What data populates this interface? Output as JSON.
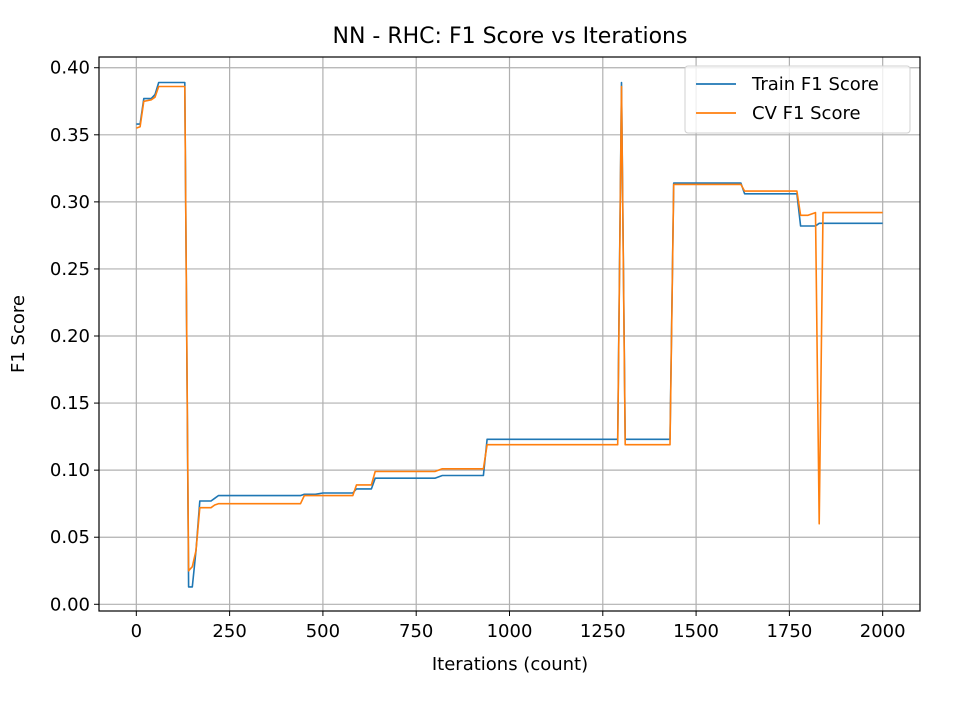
{
  "chart_data": {
    "type": "line",
    "title": "NN - RHC: F1 Score vs Iterations",
    "xlabel": "Iterations (count)",
    "ylabel": "F1 Score",
    "xlim": [
      -100,
      2100
    ],
    "ylim": [
      -0.005,
      0.408
    ],
    "xticks": [
      0,
      250,
      500,
      750,
      1000,
      1250,
      1500,
      1750,
      2000
    ],
    "xtick_labels": [
      "0",
      "250",
      "500",
      "750",
      "1000",
      "1250",
      "1500",
      "1750",
      "2000"
    ],
    "yticks": [
      0.0,
      0.05,
      0.1,
      0.15,
      0.2,
      0.25,
      0.3,
      0.35,
      0.4
    ],
    "ytick_labels": [
      "0.00",
      "0.05",
      "0.10",
      "0.15",
      "0.20",
      "0.25",
      "0.30",
      "0.35",
      "0.40"
    ],
    "grid": true,
    "legend_position": "top-right",
    "series": [
      {
        "name": "Train F1 Score",
        "color": "#1f77b4",
        "x": [
          0,
          10,
          20,
          40,
          50,
          60,
          80,
          100,
          130,
          140,
          150,
          160,
          170,
          180,
          200,
          210,
          220,
          250,
          300,
          350,
          400,
          440,
          450,
          480,
          500,
          540,
          580,
          590,
          620,
          630,
          640,
          700,
          800,
          820,
          900,
          930,
          940,
          1000,
          1100,
          1200,
          1290,
          1300,
          1310,
          1350,
          1400,
          1430,
          1440,
          1450,
          1500,
          1550,
          1600,
          1620,
          1630,
          1700,
          1750,
          1770,
          1780,
          1800,
          1820,
          1830,
          1840,
          1900,
          2000
        ],
        "y": [
          0.358,
          0.358,
          0.377,
          0.377,
          0.38,
          0.389,
          0.389,
          0.389,
          0.389,
          0.013,
          0.013,
          0.04,
          0.077,
          0.077,
          0.077,
          0.079,
          0.081,
          0.081,
          0.081,
          0.081,
          0.081,
          0.081,
          0.082,
          0.082,
          0.083,
          0.083,
          0.083,
          0.086,
          0.086,
          0.086,
          0.094,
          0.094,
          0.094,
          0.096,
          0.096,
          0.096,
          0.123,
          0.123,
          0.123,
          0.123,
          0.123,
          0.389,
          0.123,
          0.123,
          0.123,
          0.123,
          0.314,
          0.314,
          0.314,
          0.314,
          0.314,
          0.314,
          0.306,
          0.306,
          0.306,
          0.306,
          0.282,
          0.282,
          0.282,
          0.284,
          0.284,
          0.284,
          0.284
        ]
      },
      {
        "name": "CV F1 Score",
        "color": "#ff7f0e",
        "x": [
          0,
          10,
          20,
          40,
          50,
          60,
          80,
          100,
          130,
          140,
          150,
          160,
          170,
          180,
          200,
          210,
          220,
          250,
          300,
          350,
          400,
          440,
          450,
          480,
          500,
          540,
          580,
          590,
          620,
          630,
          640,
          700,
          800,
          820,
          900,
          930,
          940,
          1000,
          1100,
          1200,
          1290,
          1300,
          1310,
          1350,
          1400,
          1430,
          1440,
          1450,
          1500,
          1550,
          1600,
          1620,
          1630,
          1700,
          1750,
          1770,
          1780,
          1800,
          1820,
          1830,
          1840,
          1900,
          2000
        ],
        "y": [
          0.355,
          0.356,
          0.375,
          0.376,
          0.378,
          0.386,
          0.386,
          0.386,
          0.386,
          0.025,
          0.028,
          0.04,
          0.072,
          0.072,
          0.072,
          0.074,
          0.075,
          0.075,
          0.075,
          0.075,
          0.075,
          0.075,
          0.081,
          0.081,
          0.081,
          0.081,
          0.081,
          0.089,
          0.089,
          0.089,
          0.099,
          0.099,
          0.099,
          0.101,
          0.101,
          0.101,
          0.119,
          0.119,
          0.119,
          0.119,
          0.119,
          0.386,
          0.119,
          0.119,
          0.119,
          0.119,
          0.313,
          0.313,
          0.313,
          0.313,
          0.313,
          0.313,
          0.308,
          0.308,
          0.308,
          0.308,
          0.29,
          0.29,
          0.292,
          0.06,
          0.292,
          0.292,
          0.292
        ]
      }
    ]
  }
}
